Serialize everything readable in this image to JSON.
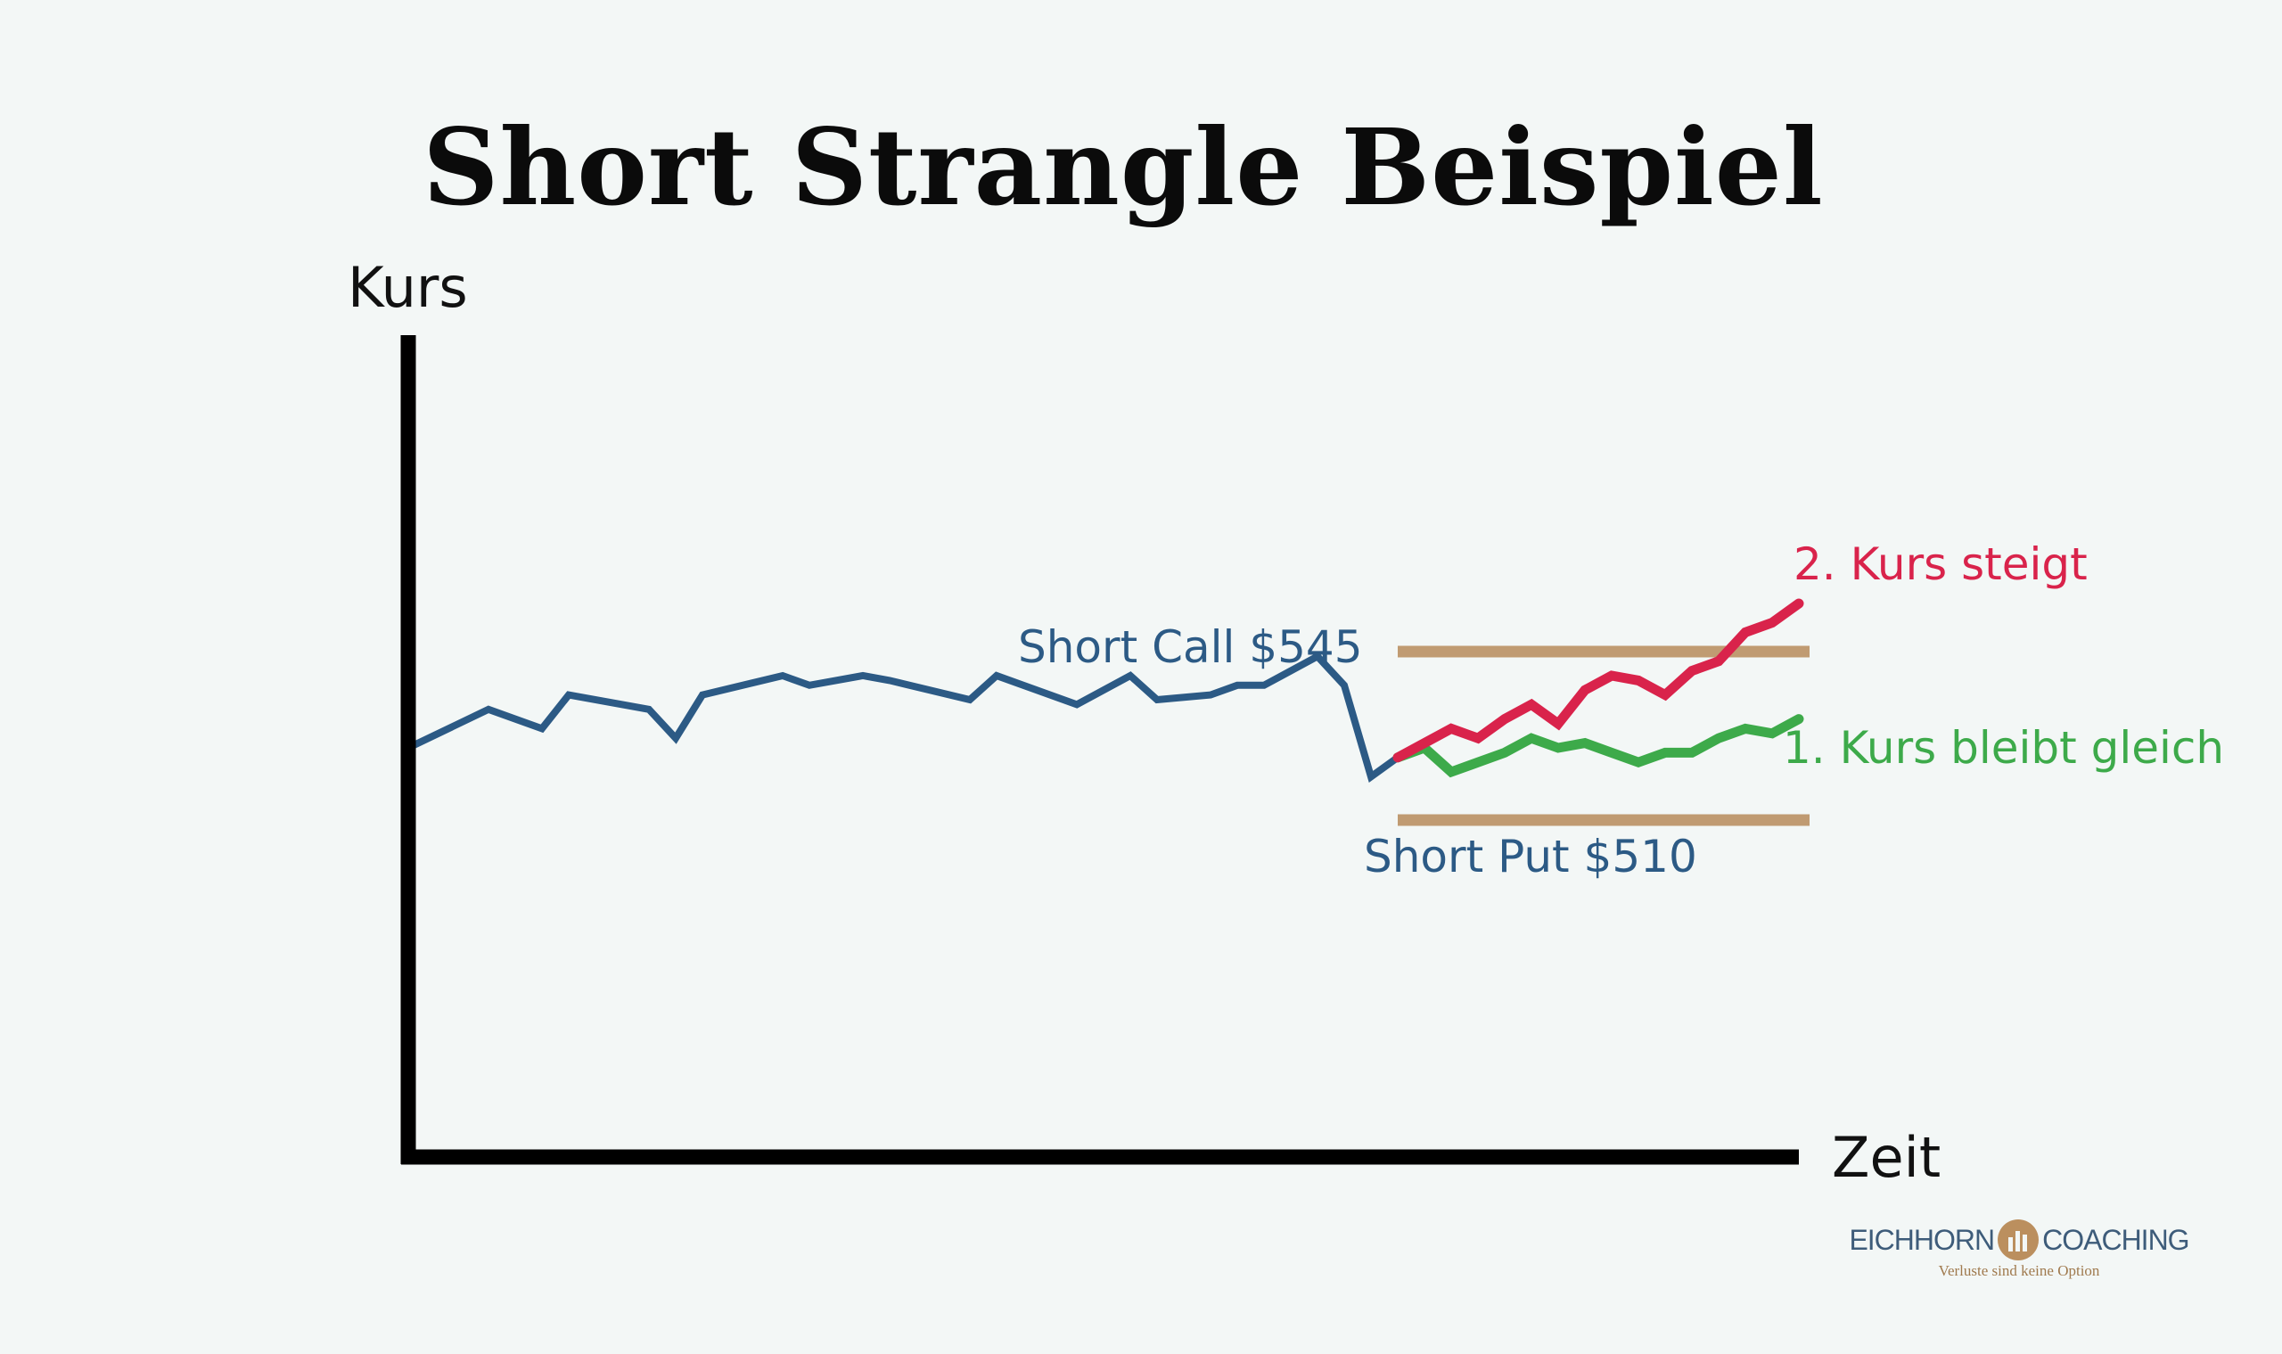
{
  "chart_data": {
    "type": "line",
    "title": "Short Strangle Beispiel",
    "xlabel": "Zeit",
    "ylabel": "Kurs",
    "xlim": [
      0,
      52
    ],
    "ylim": [
      440,
      610
    ],
    "grid": false,
    "legend": "none",
    "levels": [
      {
        "label": "Short Call $545",
        "value": 545,
        "color": "#c09b72"
      },
      {
        "label": "Short Put $510",
        "value": 510,
        "color": "#c09b72"
      }
    ],
    "series": [
      {
        "color": "#2c5a85",
        "x": [
          0,
          3,
          5,
          6,
          9,
          10,
          11,
          14,
          15,
          17,
          18,
          21,
          22,
          25,
          27,
          28,
          30,
          31,
          32,
          34,
          35,
          36,
          37
        ],
        "y": [
          525,
          533,
          529,
          536,
          533,
          527,
          536,
          540,
          538,
          540,
          539,
          535,
          540,
          534,
          540,
          535,
          536,
          538,
          538,
          544,
          538,
          519,
          523
        ]
      },
      {
        "color": "#d9234b",
        "x": [
          37,
          38,
          39,
          40,
          41,
          42,
          43,
          44,
          45,
          46,
          47,
          48,
          49,
          50,
          51,
          52
        ],
        "y": [
          523,
          526,
          529,
          527,
          531,
          534,
          530,
          537,
          540,
          539,
          536,
          541,
          543,
          549,
          551,
          555
        ]
      },
      {
        "color": "#3daa4a",
        "x": [
          37,
          38,
          39,
          40,
          41,
          42,
          43,
          44,
          45,
          46,
          47,
          48,
          49,
          50,
          51,
          52
        ],
        "y": [
          523,
          525,
          520,
          522,
          524,
          527,
          525,
          526,
          524,
          522,
          524,
          524,
          527,
          529,
          528,
          531
        ]
      }
    ],
    "annotations": [
      {
        "text": "2. Kurs steigt",
        "color": "#d9234b"
      },
      {
        "text": "1. Kurs bleibt gleich",
        "color": "#3daa4a"
      }
    ]
  },
  "branding": {
    "left": "EICHHORN",
    "right": "COACHING",
    "tagline": "Verluste sind keine Option"
  }
}
